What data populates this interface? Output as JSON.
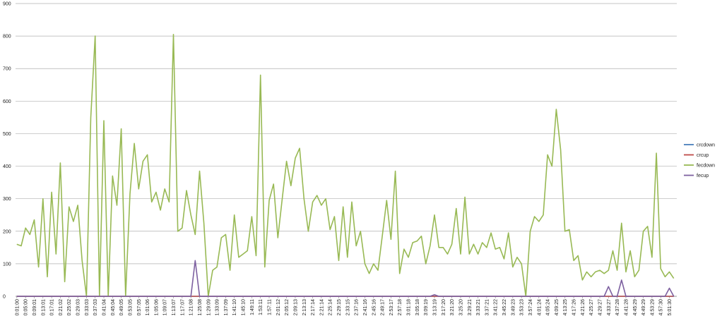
{
  "chart_data": {
    "type": "line",
    "categories": [
      "0:01:00",
      null,
      "0:05:00",
      null,
      "0:09:01",
      null,
      "0:13:01",
      null,
      "0:17:01",
      null,
      "0:21:02",
      null,
      "0:25:02",
      null,
      "0:29:03",
      null,
      "0:33:03",
      null,
      "0:37:03",
      null,
      "0:41:04",
      null,
      "0:45:04",
      null,
      "0:49:05",
      null,
      "0:53:05",
      null,
      "0:57:05",
      null,
      "1:01:06",
      null,
      "1:05:06",
      null,
      "1:09:07",
      null,
      "1:13:07",
      null,
      "1:17:07",
      null,
      "1:21:08",
      null,
      "1:25:08",
      null,
      "1:29:09",
      null,
      "1:33:09",
      null,
      "1:37:09",
      null,
      "1:41:10",
      null,
      "1:45:10",
      null,
      "1:49:11",
      null,
      "1:53:11",
      null,
      "1:57:11",
      null,
      "2:01:12",
      null,
      "2:05:12",
      null,
      "2:09:13",
      null,
      "2:13:13",
      null,
      "2:17:14",
      null,
      "2:21:14",
      null,
      "2:25:14",
      null,
      "2:29:15",
      null,
      "2:33:15",
      null,
      "2:37:16",
      null,
      "2:41:16",
      null,
      "2:45:16",
      null,
      "2:49:17",
      null,
      "2:53:17",
      null,
      "2:57:18",
      null,
      "3:01:18",
      null,
      "3:05:18",
      null,
      "3:09:19",
      null,
      "3:13:19",
      null,
      "3:17:20",
      null,
      "3:21:20",
      null,
      "3:25:20",
      null,
      "3:29:21",
      null,
      "3:33:21",
      null,
      "3:37:21",
      null,
      "3:41:22",
      null,
      "3:45:22",
      null,
      "3:49:23",
      null,
      "3:53:23",
      null,
      "3:57:24",
      null,
      "4:01:24",
      null,
      "4:05:24",
      null,
      "4:09:25",
      null,
      "4:13:25",
      null,
      "4:17:26",
      null,
      "4:21:26",
      null,
      "4:25:27",
      null,
      "4:29:27",
      null,
      "4:33:27",
      null,
      "4:37:28",
      null,
      "4:41:28",
      null,
      "4:45:29",
      null,
      "4:49:29",
      null,
      "4:53:29",
      null,
      "4:57:30",
      null,
      "5:01:30",
      null
    ],
    "series": [
      {
        "name": "crcdown",
        "color": "#4a7ebb",
        "values": [
          0,
          0,
          0,
          0,
          0,
          0,
          0,
          0,
          0,
          0,
          0,
          0,
          0,
          0,
          0,
          0,
          0,
          0,
          0,
          0,
          0,
          0,
          0,
          0,
          0,
          0,
          0,
          0,
          0,
          0,
          0,
          0,
          0,
          0,
          0,
          0,
          0,
          0,
          0,
          0,
          0,
          0,
          0,
          0,
          0,
          0,
          0,
          0,
          0,
          0,
          0,
          0,
          0,
          0,
          0,
          0,
          0,
          0,
          0,
          0,
          0,
          0,
          0,
          0,
          0,
          0,
          0,
          0,
          0,
          0,
          0,
          0,
          0,
          0,
          0,
          0,
          0,
          0,
          0,
          0,
          0,
          0,
          0,
          0,
          0,
          0,
          0,
          0,
          0,
          0,
          0,
          0,
          0,
          0,
          0,
          0,
          0,
          0,
          0,
          0,
          0,
          0,
          0,
          0,
          0,
          0,
          0,
          0,
          0,
          0,
          0,
          0,
          0,
          0,
          0,
          0,
          0,
          0,
          0,
          0,
          0,
          0,
          0,
          0,
          0,
          0,
          0,
          0,
          0,
          0,
          0,
          0,
          0,
          0,
          0,
          0,
          0,
          0,
          0,
          0,
          0,
          0,
          0,
          0,
          0,
          0,
          0,
          0,
          0,
          0,
          0,
          0
        ]
      },
      {
        "name": "crcup",
        "color": "#be4b48",
        "values": [
          0,
          0,
          0,
          0,
          0,
          0,
          0,
          0,
          0,
          0,
          0,
          0,
          0,
          0,
          0,
          0,
          0,
          0,
          0,
          0,
          0,
          0,
          0,
          0,
          0,
          0,
          0,
          0,
          0,
          0,
          0,
          0,
          0,
          0,
          0,
          0,
          0,
          0,
          0,
          0,
          0,
          0,
          0,
          0,
          0,
          0,
          0,
          0,
          0,
          0,
          0,
          0,
          0,
          0,
          0,
          0,
          0,
          0,
          0,
          0,
          0,
          0,
          0,
          0,
          0,
          0,
          0,
          0,
          0,
          0,
          0,
          0,
          0,
          0,
          0,
          0,
          0,
          0,
          0,
          0,
          0,
          0,
          0,
          0,
          0,
          0,
          0,
          0,
          0,
          0,
          0,
          0,
          0,
          0,
          0,
          0,
          0,
          0,
          0,
          0,
          0,
          0,
          0,
          0,
          0,
          0,
          0,
          0,
          0,
          0,
          0,
          0,
          0,
          0,
          0,
          0,
          0,
          0,
          0,
          0,
          0,
          0,
          0,
          0,
          0,
          0,
          0,
          0,
          0,
          0,
          0,
          0,
          0,
          0,
          0,
          0,
          0,
          0,
          0,
          0,
          0,
          0,
          0,
          0,
          0,
          0,
          0,
          0,
          0,
          0,
          0,
          0
        ]
      },
      {
        "name": "fecdown",
        "color": "#98b954",
        "values": [
          160,
          155,
          210,
          190,
          235,
          90,
          300,
          60,
          320,
          130,
          410,
          45,
          275,
          230,
          280,
          110,
          0,
          550,
          800,
          0,
          540,
          0,
          370,
          280,
          515,
          0,
          315,
          470,
          330,
          415,
          435,
          290,
          320,
          265,
          330,
          290,
          805,
          200,
          210,
          325,
          250,
          190,
          385,
          225,
          0,
          80,
          90,
          180,
          190,
          80,
          250,
          120,
          130,
          140,
          245,
          125,
          680,
          90,
          295,
          345,
          180,
          300,
          415,
          340,
          425,
          455,
          300,
          200,
          290,
          310,
          280,
          300,
          205,
          245,
          110,
          275,
          120,
          290,
          155,
          200,
          100,
          70,
          100,
          80,
          185,
          295,
          175,
          385,
          70,
          145,
          120,
          165,
          170,
          185,
          100,
          155,
          250,
          150,
          150,
          130,
          160,
          270,
          130,
          305,
          130,
          160,
          130,
          165,
          150,
          195,
          145,
          150,
          115,
          195,
          90,
          120,
          100,
          0,
          200,
          245,
          230,
          250,
          435,
          400,
          575,
          450,
          200,
          205,
          110,
          125,
          50,
          75,
          60,
          75,
          80,
          70,
          80,
          140,
          80,
          225,
          75,
          140,
          60,
          80,
          200,
          215,
          120,
          440,
          85,
          60,
          75,
          55
        ]
      },
      {
        "name": "fecup",
        "color": "#7d60a0",
        "values": [
          0,
          0,
          0,
          0,
          0,
          0,
          0,
          0,
          0,
          0,
          0,
          0,
          0,
          0,
          0,
          0,
          0,
          0,
          0,
          0,
          0,
          0,
          0,
          0,
          0,
          0,
          0,
          0,
          0,
          0,
          0,
          0,
          0,
          0,
          0,
          0,
          0,
          0,
          0,
          0,
          0,
          110,
          0,
          0,
          0,
          0,
          0,
          0,
          0,
          0,
          0,
          0,
          0,
          0,
          0,
          0,
          0,
          0,
          0,
          0,
          0,
          0,
          0,
          0,
          0,
          0,
          0,
          0,
          0,
          0,
          0,
          0,
          0,
          0,
          0,
          0,
          0,
          0,
          0,
          0,
          0,
          0,
          0,
          0,
          0,
          0,
          0,
          0,
          0,
          0,
          0,
          0,
          0,
          0,
          0,
          0,
          5,
          0,
          0,
          0,
          0,
          0,
          0,
          0,
          0,
          0,
          0,
          0,
          0,
          0,
          0,
          0,
          0,
          0,
          0,
          0,
          0,
          0,
          0,
          0,
          0,
          0,
          0,
          0,
          0,
          0,
          0,
          0,
          0,
          0,
          0,
          0,
          0,
          0,
          0,
          0,
          30,
          0,
          0,
          50,
          0,
          0,
          0,
          0,
          0,
          0,
          0,
          0,
          0,
          0,
          25,
          0
        ]
      }
    ],
    "ylim": [
      0,
      900
    ],
    "yticks": [
      0,
      100,
      200,
      300,
      400,
      500,
      600,
      700,
      800,
      900
    ],
    "grid": true,
    "legend": "right"
  }
}
